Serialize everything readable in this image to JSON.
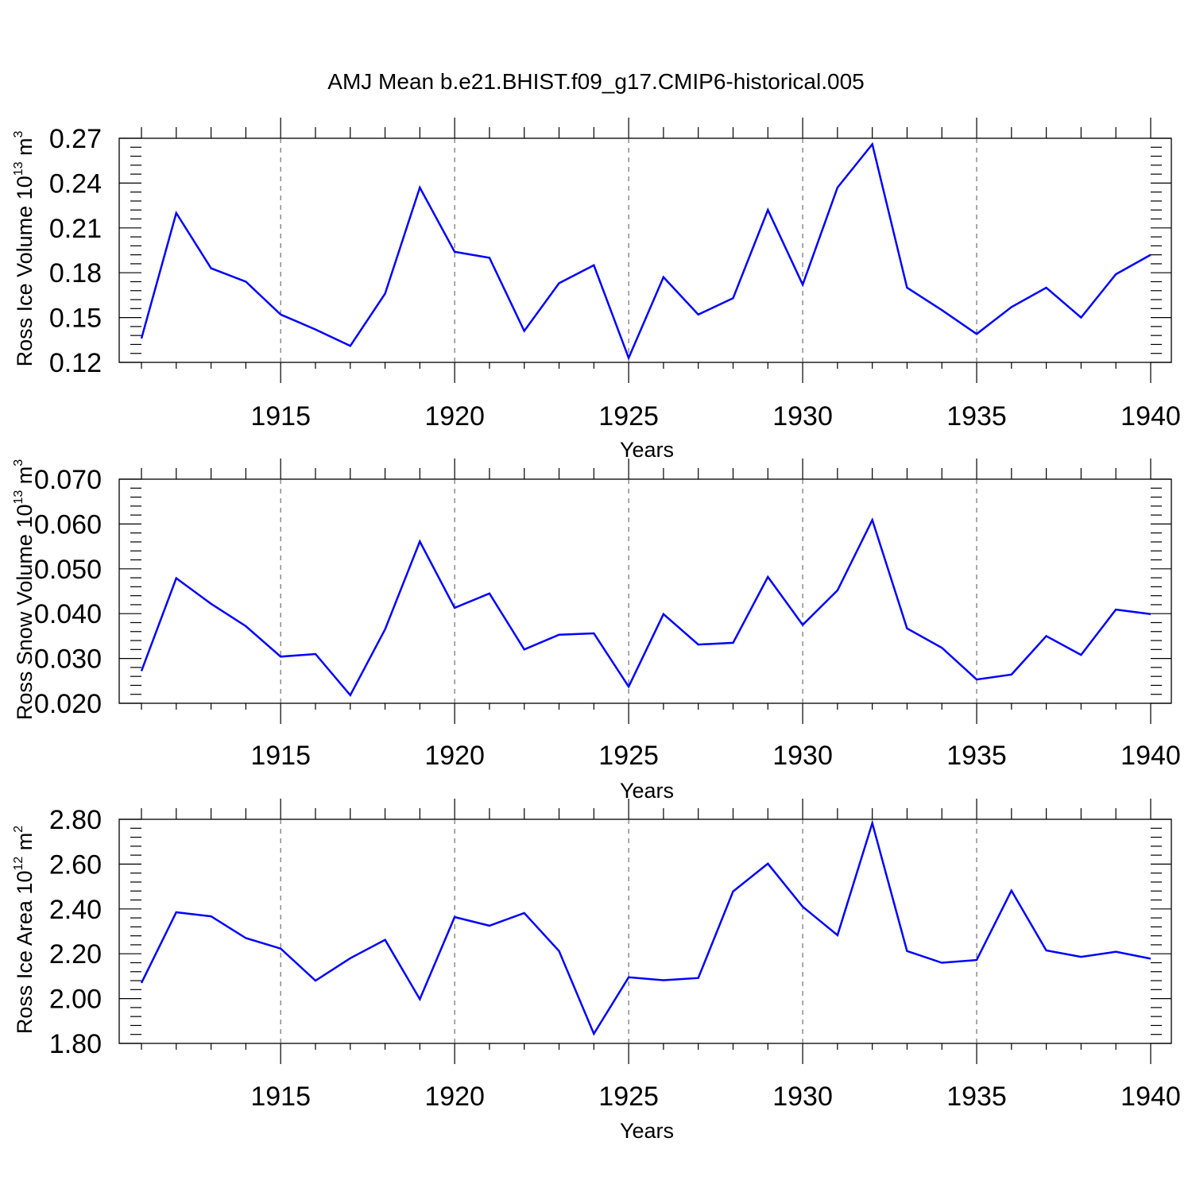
{
  "figure": {
    "title": "AMJ Mean b.e21.BHIST.f09_g17.CMIP6-historical.005"
  },
  "chart_data": [
    {
      "type": "line",
      "xlabel": "Years",
      "ylabel": "Ross Ice Volume 10",
      "ylabel_sup": "13",
      "ylabel_unit": " m",
      "ylabel_unit_sup": "3",
      "xlim": [
        1911,
        1940
      ],
      "ylim": [
        0.12,
        0.27
      ],
      "yticks": [
        0.12,
        0.15,
        0.18,
        0.21,
        0.24,
        0.27
      ],
      "ytick_labels": [
        "0.12",
        "0.15",
        "0.18",
        "0.21",
        "0.24",
        "0.27"
      ],
      "xticks": [
        1915,
        1920,
        1925,
        1930,
        1935,
        1940
      ],
      "xtick_labels": [
        "1915",
        "1920",
        "1925",
        "1930",
        "1935",
        "1940"
      ],
      "grid": "vertical dashed at major x ticks",
      "color": "#0000ff",
      "x": [
        1911,
        1912,
        1913,
        1914,
        1915,
        1916,
        1917,
        1918,
        1919,
        1920,
        1921,
        1922,
        1923,
        1924,
        1925,
        1926,
        1927,
        1928,
        1929,
        1930,
        1931,
        1932,
        1933,
        1934,
        1935,
        1936,
        1937,
        1938,
        1939,
        1940
      ],
      "values": [
        0.136,
        0.22,
        0.183,
        0.174,
        0.152,
        0.142,
        0.131,
        0.166,
        0.237,
        0.194,
        0.19,
        0.141,
        0.173,
        0.185,
        0.123,
        0.177,
        0.152,
        0.163,
        0.222,
        0.172,
        0.237,
        0.266,
        0.17,
        0.155,
        0.139,
        0.157,
        0.17,
        0.15,
        0.179,
        0.192
      ]
    },
    {
      "type": "line",
      "xlabel": "Years",
      "ylabel": "Ross Snow Volume 10",
      "ylabel_sup": "13",
      "ylabel_unit": " m",
      "ylabel_unit_sup": "3",
      "xlim": [
        1911,
        1940
      ],
      "ylim": [
        0.02,
        0.07
      ],
      "yticks": [
        0.02,
        0.03,
        0.04,
        0.05,
        0.06,
        0.07
      ],
      "ytick_labels": [
        "0.020",
        "0.030",
        "0.040",
        "0.050",
        "0.060",
        "0.070"
      ],
      "xticks": [
        1915,
        1920,
        1925,
        1930,
        1935,
        1940
      ],
      "xtick_labels": [
        "1915",
        "1920",
        "1925",
        "1930",
        "1935",
        "1940"
      ],
      "grid": "vertical dashed at major x ticks",
      "color": "#0000ff",
      "x": [
        1911,
        1912,
        1913,
        1914,
        1915,
        1916,
        1917,
        1918,
        1919,
        1920,
        1921,
        1922,
        1923,
        1924,
        1925,
        1926,
        1927,
        1928,
        1929,
        1930,
        1931,
        1932,
        1933,
        1934,
        1935,
        1936,
        1937,
        1938,
        1939,
        1940
      ],
      "values": [
        0.0272,
        0.0479,
        0.0422,
        0.0372,
        0.0304,
        0.031,
        0.0218,
        0.0365,
        0.0561,
        0.0413,
        0.0445,
        0.032,
        0.0353,
        0.0356,
        0.0237,
        0.0399,
        0.0331,
        0.0335,
        0.0482,
        0.0375,
        0.0452,
        0.0609,
        0.0367,
        0.0324,
        0.0253,
        0.0264,
        0.035,
        0.0308,
        0.0409,
        0.0399
      ]
    },
    {
      "type": "line",
      "xlabel": "Years",
      "ylabel": "Ross Ice Area 10",
      "ylabel_sup": "12",
      "ylabel_unit": " m",
      "ylabel_unit_sup": "2",
      "xlim": [
        1911,
        1940
      ],
      "ylim": [
        1.8,
        2.8
      ],
      "yticks": [
        1.8,
        2.0,
        2.2,
        2.4,
        2.6,
        2.8
      ],
      "ytick_labels": [
        "1.80",
        "2.00",
        "2.20",
        "2.40",
        "2.60",
        "2.80"
      ],
      "xticks": [
        1915,
        1920,
        1925,
        1930,
        1935,
        1940
      ],
      "xtick_labels": [
        "1915",
        "1920",
        "1925",
        "1930",
        "1935",
        "1940"
      ],
      "grid": "vertical dashed at major x ticks",
      "color": "#0000ff",
      "x": [
        1911,
        1912,
        1913,
        1914,
        1915,
        1916,
        1917,
        1918,
        1919,
        1920,
        1921,
        1922,
        1923,
        1924,
        1925,
        1926,
        1927,
        1928,
        1929,
        1930,
        1931,
        1932,
        1933,
        1934,
        1935,
        1936,
        1937,
        1938,
        1939,
        1940
      ],
      "values": [
        2.07,
        2.385,
        2.367,
        2.27,
        2.223,
        2.08,
        2.18,
        2.262,
        1.997,
        2.364,
        2.325,
        2.382,
        2.212,
        1.843,
        2.095,
        2.082,
        2.092,
        2.478,
        2.602,
        2.41,
        2.283,
        2.783,
        2.212,
        2.16,
        2.172,
        2.482,
        2.215,
        2.186,
        2.209,
        2.178
      ]
    }
  ]
}
